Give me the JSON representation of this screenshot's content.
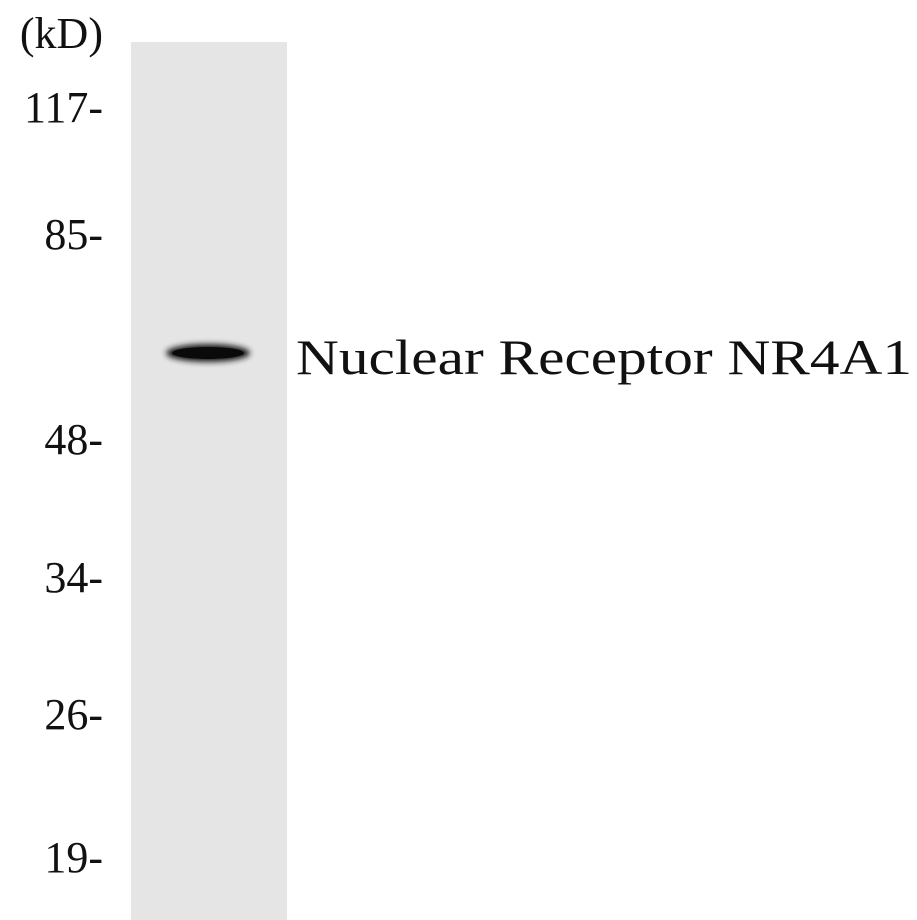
{
  "unit": "(kD)",
  "markers": [
    "117-",
    "85-",
    "48-",
    "34-",
    "26-",
    "19-"
  ],
  "band_label": "Nuclear Receptor NR4A1"
}
